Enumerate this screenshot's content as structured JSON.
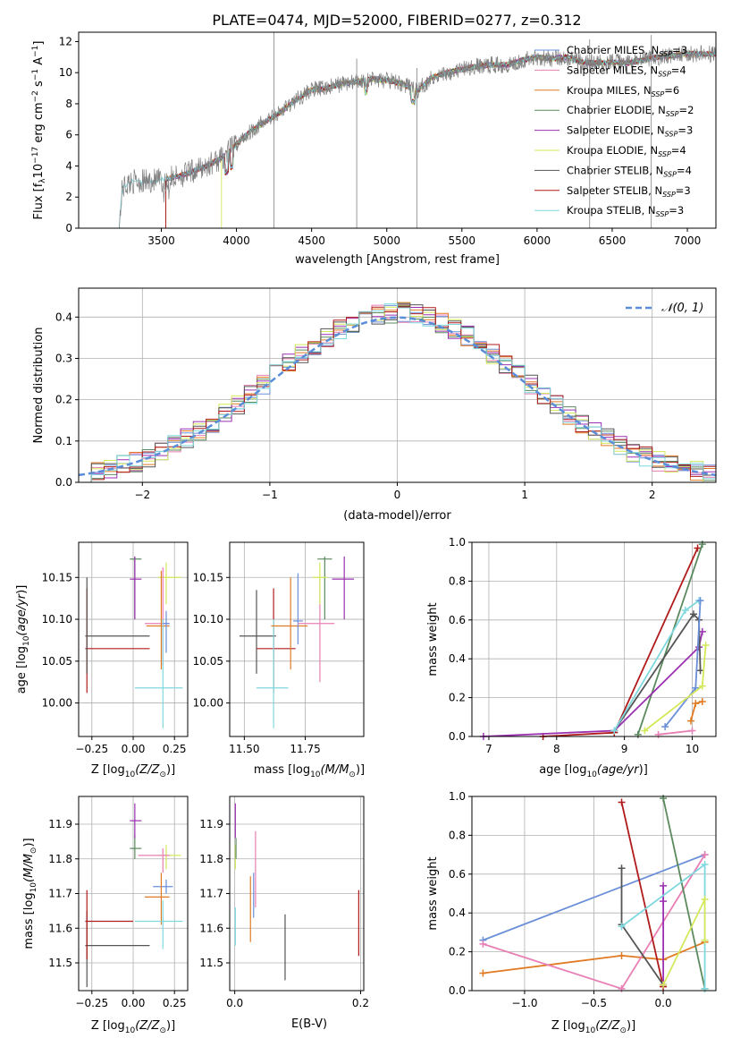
{
  "title": "PLATE=0474, MJD=52000, FIBERID=0277, z=0.312",
  "colors": {
    "chabrier_miles": "#6a8fd8",
    "salpeter_miles": "#e87fb4",
    "kroupa_miles": "#e07b24",
    "chabrier_elodie": "#5b8a5e",
    "salpeter_elodie": "#9b30b2",
    "kroupa_elodie": "#d4e85a",
    "chabrier_stelib": "#555555",
    "salpeter_stelib": "#b01c1c",
    "kroupa_stelib": "#7fd8de",
    "data": "#808080",
    "gauss": "#5b8ed8"
  },
  "legend": {
    "items": [
      {
        "key": "chabrier_miles",
        "label": "Chabrier MILES, N",
        "sub": "SSP",
        "suffix": "=3"
      },
      {
        "key": "salpeter_miles",
        "label": "Salpeter MILES, N",
        "sub": "SSP",
        "suffix": "=4"
      },
      {
        "key": "kroupa_miles",
        "label": "Kroupa MILES, N",
        "sub": "SSP",
        "suffix": "=6"
      },
      {
        "key": "chabrier_elodie",
        "label": "Chabrier ELODIE, N",
        "sub": "SSP",
        "suffix": "=2"
      },
      {
        "key": "salpeter_elodie",
        "label": "Salpeter ELODIE, N",
        "sub": "SSP",
        "suffix": "=3"
      },
      {
        "key": "kroupa_elodie",
        "label": "Kroupa ELODIE, N",
        "sub": "SSP",
        "suffix": "=4"
      },
      {
        "key": "chabrier_stelib",
        "label": "Chabrier STELIB, N",
        "sub": "SSP",
        "suffix": "=4"
      },
      {
        "key": "salpeter_stelib",
        "label": "Salpeter STELIB, N",
        "sub": "SSP",
        "suffix": "=3"
      },
      {
        "key": "kroupa_stelib",
        "label": "Kroupa STELIB, N",
        "sub": "SSP",
        "suffix": "=3"
      }
    ],
    "gauss_label": "𝒩(0, 1)"
  },
  "chart_data": [
    {
      "id": "spectrum",
      "type": "line",
      "xlabel": "wavelength [Angstrom, rest frame]",
      "ylabel": "Flux [f",
      "ylabel_parts": {
        "sub1": "λ",
        "mid": "10",
        "sup1": "−17",
        "mid2": " erg cm",
        "sup2": "−2",
        "mid3": " s",
        "sup3": "−1",
        "mid4": " A",
        "sup4": "−1",
        "end": "]"
      },
      "xlim": [
        2950,
        7190
      ],
      "ylim": [
        0,
        12.6
      ],
      "xticks": [
        3500,
        4000,
        4500,
        5000,
        5500,
        6000,
        6500,
        7000
      ],
      "yticks": [
        0,
        2,
        4,
        6,
        8,
        10,
        12
      ],
      "continuum": [
        [
          3220,
          0
        ],
        [
          3240,
          2.6
        ],
        [
          3300,
          3.0
        ],
        [
          3400,
          3.0
        ],
        [
          3500,
          3.1
        ],
        [
          3600,
          3.3
        ],
        [
          3700,
          3.6
        ],
        [
          3800,
          4.0
        ],
        [
          3900,
          4.5
        ],
        [
          4000,
          5.4
        ],
        [
          4100,
          6.3
        ],
        [
          4200,
          6.9
        ],
        [
          4300,
          7.5
        ],
        [
          4400,
          8.3
        ],
        [
          4500,
          8.9
        ],
        [
          4600,
          9.0
        ],
        [
          4700,
          9.3
        ],
        [
          4800,
          9.4
        ],
        [
          4900,
          9.6
        ],
        [
          5000,
          9.5
        ],
        [
          5100,
          9.3
        ],
        [
          5200,
          8.8
        ],
        [
          5300,
          9.7
        ],
        [
          5400,
          10.0
        ],
        [
          5500,
          10.2
        ],
        [
          5600,
          10.4
        ],
        [
          5700,
          10.5
        ],
        [
          5800,
          10.5
        ],
        [
          5900,
          10.8
        ],
        [
          6000,
          11.0
        ],
        [
          6100,
          10.9
        ],
        [
          6200,
          11.0
        ],
        [
          6300,
          10.7
        ],
        [
          6400,
          10.6
        ],
        [
          6500,
          10.7
        ],
        [
          6600,
          10.6
        ],
        [
          6700,
          10.8
        ],
        [
          6800,
          11.0
        ],
        [
          6900,
          11.1
        ],
        [
          7000,
          11.2
        ]
      ],
      "model_starts": {
        "kroupa_stelib": 3220,
        "kroupa_elodie": 3900,
        "default": 3530
      }
    },
    {
      "id": "residuals",
      "type": "step",
      "xlabel": "(data-model)/error",
      "ylabel": "Normed distribution",
      "xlim": [
        -2.5,
        2.5
      ],
      "ylim": [
        0,
        0.47
      ],
      "xticks": [
        -2,
        -1,
        0,
        1,
        2
      ],
      "yticks": [
        0.0,
        0.1,
        0.2,
        0.3,
        0.4
      ],
      "bin_width": 0.1,
      "series_name": "𝒩(0, 1)"
    },
    {
      "id": "age_vs_Z",
      "type": "errorbar",
      "xlabel": "Z [log",
      "xlabel_tail": "(Z/Z",
      "ylabel": "age  [log",
      "xlim": [
        -0.33,
        0.33
      ],
      "ylim": [
        9.96,
        10.192
      ],
      "xticks": [
        -0.25,
        0.0,
        0.25
      ],
      "yticks": [
        10.0,
        10.05,
        10.1,
        10.15
      ],
      "points": [
        {
          "key": "salpeter_stelib",
          "x": -0.28,
          "y": 10.065,
          "xlo": -0.29,
          "xhi": 0.1,
          "ylo": 10.012,
          "yhi": 10.137
        },
        {
          "key": "chabrier_stelib",
          "x": -0.28,
          "y": 10.08,
          "xlo": -0.29,
          "xhi": 0.1,
          "ylo": 10.035,
          "yhi": 10.15
        },
        {
          "key": "chabrier_elodie",
          "x": 0.01,
          "y": 10.172,
          "xlo": -0.02,
          "xhi": 0.05,
          "ylo": 10.1,
          "yhi": 10.175
        },
        {
          "key": "salpeter_elodie",
          "x": 0.01,
          "y": 10.148,
          "xlo": -0.02,
          "xhi": 0.05,
          "ylo": 10.1,
          "yhi": 10.175
        },
        {
          "key": "kroupa_elodie",
          "x": 0.2,
          "y": 10.15,
          "xlo": 0.15,
          "xhi": 0.29,
          "ylo": 10.118,
          "yhi": 10.168
        },
        {
          "key": "salpeter_miles",
          "x": 0.18,
          "y": 10.095,
          "xlo": 0.07,
          "xhi": 0.22,
          "ylo": 10.045,
          "yhi": 10.162
        },
        {
          "key": "kroupa_miles",
          "x": 0.17,
          "y": 10.092,
          "xlo": 0.08,
          "xhi": 0.22,
          "ylo": 10.04,
          "yhi": 10.158
        },
        {
          "key": "kroupa_stelib",
          "x": 0.18,
          "y": 10.018,
          "xlo": 0.01,
          "xhi": 0.3,
          "ylo": 9.97,
          "yhi": 10.1
        },
        {
          "key": "chabrier_miles",
          "x": 0.2,
          "y": 10.095,
          "xlo": 0.18,
          "xhi": 0.22,
          "ylo": 10.06,
          "yhi": 10.11
        }
      ]
    },
    {
      "id": "age_vs_mass",
      "type": "errorbar",
      "xlabel": "mass [log",
      "xlabel_tail": "(M/M",
      "ylabel": "",
      "xlim": [
        11.44,
        11.99
      ],
      "ylim": [
        9.96,
        10.192
      ],
      "xticks": [
        11.5,
        11.75
      ],
      "yticks": [
        10.0,
        10.05,
        10.1,
        10.15
      ],
      "points": [
        {
          "key": "chabrier_stelib",
          "x": 11.55,
          "y": 10.08,
          "xlo": 11.48,
          "xhi": 11.63,
          "ylo": 10.035,
          "yhi": 10.135
        },
        {
          "key": "salpeter_stelib",
          "x": 11.62,
          "y": 10.065,
          "xlo": 11.55,
          "xhi": 11.71,
          "ylo": 10.012,
          "yhi": 10.137
        },
        {
          "key": "kroupa_stelib",
          "x": 11.62,
          "y": 10.018,
          "xlo": 11.55,
          "xhi": 11.68,
          "ylo": 9.97,
          "yhi": 10.1
        },
        {
          "key": "kroupa_miles",
          "x": 11.69,
          "y": 10.092,
          "xlo": 11.61,
          "xhi": 11.76,
          "ylo": 10.04,
          "yhi": 10.15
        },
        {
          "key": "chabrier_miles",
          "x": 11.72,
          "y": 10.098,
          "xlo": 11.7,
          "xhi": 11.74,
          "ylo": 10.07,
          "yhi": 10.155
        },
        {
          "key": "salpeter_miles",
          "x": 11.81,
          "y": 10.095,
          "xlo": 11.72,
          "xhi": 11.87,
          "ylo": 10.025,
          "yhi": 10.15
        },
        {
          "key": "chabrier_elodie",
          "x": 11.83,
          "y": 10.172,
          "xlo": 11.8,
          "xhi": 11.86,
          "ylo": 10.1,
          "yhi": 10.175
        },
        {
          "key": "kroupa_elodie",
          "x": 11.81,
          "y": 10.15,
          "xlo": 11.78,
          "xhi": 11.84,
          "ylo": 10.118,
          "yhi": 10.168
        },
        {
          "key": "salpeter_elodie",
          "x": 11.91,
          "y": 10.148,
          "xlo": 11.86,
          "xhi": 11.95,
          "ylo": 10.1,
          "yhi": 10.175
        }
      ]
    },
    {
      "id": "weight_vs_age",
      "type": "line",
      "xlabel": "age  [log",
      "ylabel": "mass weight",
      "xlim": [
        6.75,
        10.35
      ],
      "ylim": [
        0,
        1.0
      ],
      "xticks": [
        7,
        8,
        9,
        10
      ],
      "yticks": [
        0.0,
        0.2,
        0.4,
        0.6,
        0.8,
        1.0
      ],
      "series": [
        {
          "key": "salpeter_stelib",
          "x": [
            7.8,
            8.85,
            10.08
          ],
          "y": [
            0.0,
            0.02,
            0.97
          ]
        },
        {
          "key": "chabrier_elodie",
          "x": [
            9.2,
            10.15
          ],
          "y": [
            0.01,
            0.99
          ]
        },
        {
          "key": "salpeter_elodie",
          "x": [
            6.92,
            8.85,
            10.1,
            10.15
          ],
          "y": [
            0.0,
            0.03,
            0.46,
            0.54
          ]
        },
        {
          "key": "chabrier_stelib",
          "x": [
            8.85,
            10.02,
            10.1,
            10.12
          ],
          "y": [
            0.03,
            0.63,
            0.6,
            0.34
          ]
        },
        {
          "key": "kroupa_stelib",
          "x": [
            8.85,
            9.9,
            10.1
          ],
          "y": [
            0.03,
            0.65,
            0.7
          ]
        },
        {
          "key": "chabrier_miles",
          "x": [
            9.6,
            10.05,
            10.12
          ],
          "y": [
            0.05,
            0.25,
            0.7
          ]
        },
        {
          "key": "kroupa_elodie",
          "x": [
            9.3,
            10.15,
            10.2
          ],
          "y": [
            0.03,
            0.26,
            0.47
          ]
        },
        {
          "key": "kroupa_miles",
          "x": [
            9.98,
            10.05,
            10.15
          ],
          "y": [
            0.08,
            0.17,
            0.18
          ]
        },
        {
          "key": "salpeter_miles",
          "x": [
            9.5,
            10.0
          ],
          "y": [
            0.01,
            0.03
          ]
        }
      ]
    },
    {
      "id": "mass_vs_Z",
      "type": "errorbar",
      "xlabel": "Z [log",
      "xlabel_tail": "(Z/Z",
      "ylabel": "mass [log",
      "xlim": [
        -0.33,
        0.33
      ],
      "ylim": [
        11.42,
        11.98
      ],
      "xticks": [
        -0.25,
        0.0,
        0.25
      ],
      "yticks": [
        11.5,
        11.6,
        11.7,
        11.8,
        11.9
      ],
      "points": [
        {
          "key": "chabrier_stelib",
          "x": -0.28,
          "y": 11.55,
          "xlo": -0.29,
          "xhi": 0.1,
          "ylo": 11.43,
          "yhi": 11.65
        },
        {
          "key": "salpeter_stelib",
          "x": -0.28,
          "y": 11.62,
          "xlo": -0.29,
          "xhi": 0.0,
          "ylo": 11.51,
          "yhi": 11.71
        },
        {
          "key": "chabrier_elodie",
          "x": 0.01,
          "y": 11.83,
          "xlo": -0.02,
          "xhi": 0.05,
          "ylo": 11.8,
          "yhi": 11.87
        },
        {
          "key": "salpeter_elodie",
          "x": 0.01,
          "y": 11.91,
          "xlo": -0.02,
          "xhi": 0.05,
          "ylo": 11.86,
          "yhi": 11.96
        },
        {
          "key": "kroupa_elodie",
          "x": 0.2,
          "y": 11.81,
          "xlo": 0.15,
          "xhi": 0.29,
          "ylo": 11.77,
          "yhi": 11.84
        },
        {
          "key": "salpeter_miles",
          "x": 0.18,
          "y": 11.81,
          "xlo": 0.03,
          "xhi": 0.22,
          "ylo": 11.76,
          "yhi": 11.83
        },
        {
          "key": "chabrier_miles",
          "x": 0.2,
          "y": 11.72,
          "xlo": 0.12,
          "xhi": 0.24,
          "ylo": 11.7,
          "yhi": 11.74
        },
        {
          "key": "kroupa_miles",
          "x": 0.17,
          "y": 11.69,
          "xlo": 0.07,
          "xhi": 0.22,
          "ylo": 11.61,
          "yhi": 11.76
        },
        {
          "key": "kroupa_stelib",
          "x": 0.18,
          "y": 11.62,
          "xlo": 0.01,
          "xhi": 0.3,
          "ylo": 11.54,
          "yhi": 11.68
        }
      ]
    },
    {
      "id": "mass_vs_EBV",
      "type": "errorbar",
      "xlabel": "E(B-V)",
      "ylabel": "",
      "xlim": [
        -0.008,
        0.205
      ],
      "ylim": [
        11.42,
        11.98
      ],
      "xticks": [
        0.0,
        0.2
      ],
      "yticks": [
        11.5,
        11.6,
        11.7,
        11.8,
        11.9
      ],
      "points": [
        {
          "key": "salpeter_elodie",
          "x": 0.001,
          "y": 11.91,
          "xlo": 0.001,
          "xhi": 0.001,
          "ylo": 11.86,
          "yhi": 11.96
        },
        {
          "key": "kroupa_elodie",
          "x": 0.001,
          "y": 11.8,
          "xlo": 0.001,
          "xhi": 0.001,
          "ylo": 11.77,
          "yhi": 11.84
        },
        {
          "key": "chabrier_elodie",
          "x": 0.002,
          "y": 11.82,
          "xlo": 0.002,
          "xhi": 0.002,
          "ylo": 11.8,
          "yhi": 11.86
        },
        {
          "key": "kroupa_stelib",
          "x": 0.001,
          "y": 11.6,
          "xlo": 0.001,
          "xhi": 0.001,
          "ylo": 11.55,
          "yhi": 11.66
        },
        {
          "key": "chabrier_miles",
          "x": 0.03,
          "y": 11.7,
          "xlo": 0.03,
          "xhi": 0.03,
          "ylo": 11.63,
          "yhi": 11.76
        },
        {
          "key": "kroupa_miles",
          "x": 0.025,
          "y": 11.66,
          "xlo": 0.025,
          "xhi": 0.025,
          "ylo": 11.56,
          "yhi": 11.75
        },
        {
          "key": "salpeter_miles",
          "x": 0.033,
          "y": 11.8,
          "xlo": 0.033,
          "xhi": 0.033,
          "ylo": 11.66,
          "yhi": 11.88
        },
        {
          "key": "chabrier_stelib",
          "x": 0.08,
          "y": 11.55,
          "xlo": 0.08,
          "xhi": 0.08,
          "ylo": 11.45,
          "yhi": 11.64
        },
        {
          "key": "salpeter_stelib",
          "x": 0.197,
          "y": 11.62,
          "xlo": 0.197,
          "xhi": 0.197,
          "ylo": 11.52,
          "yhi": 11.71
        }
      ]
    },
    {
      "id": "weight_vs_Z",
      "type": "line",
      "xlabel": "Z [log",
      "xlabel_tail": "(Z/Z",
      "ylabel": "mass weight",
      "xlim": [
        -1.38,
        0.38
      ],
      "ylim": [
        0,
        1.0
      ],
      "xticks": [
        -1.0,
        -0.5,
        0.0
      ],
      "yticks": [
        0.0,
        0.2,
        0.4,
        0.6,
        0.8,
        1.0
      ],
      "series": [
        {
          "key": "chabrier_miles",
          "x": [
            -1.3,
            0.3
          ],
          "y": [
            0.26,
            0.7
          ]
        },
        {
          "key": "kroupa_miles",
          "x": [
            -1.3,
            -0.3,
            0.0,
            0.3
          ],
          "y": [
            0.09,
            0.18,
            0.16,
            0.25
          ]
        },
        {
          "key": "salpeter_miles",
          "x": [
            -1.3,
            -0.3,
            0.3
          ],
          "y": [
            0.24,
            0.01,
            0.7
          ]
        },
        {
          "key": "salpeter_stelib",
          "x": [
            -0.3,
            0.0
          ],
          "y": [
            0.97,
            0.02
          ]
        },
        {
          "key": "chabrier_stelib",
          "x": [
            -0.3,
            -0.3,
            0.0
          ],
          "y": [
            0.63,
            0.34,
            0.03
          ]
        },
        {
          "key": "chabrier_elodie",
          "x": [
            0.0,
            0.3
          ],
          "y": [
            0.99,
            0.01
          ]
        },
        {
          "key": "salpeter_elodie",
          "x": [
            0.0,
            0.0,
            0.0
          ],
          "y": [
            0.54,
            0.46,
            0.03
          ]
        },
        {
          "key": "kroupa_stelib",
          "x": [
            -0.3,
            0.3,
            0.3
          ],
          "y": [
            0.33,
            0.65,
            0.01
          ]
        },
        {
          "key": "kroupa_elodie",
          "x": [
            0.0,
            0.3,
            0.3
          ],
          "y": [
            0.03,
            0.47,
            0.26
          ]
        }
      ]
    }
  ]
}
